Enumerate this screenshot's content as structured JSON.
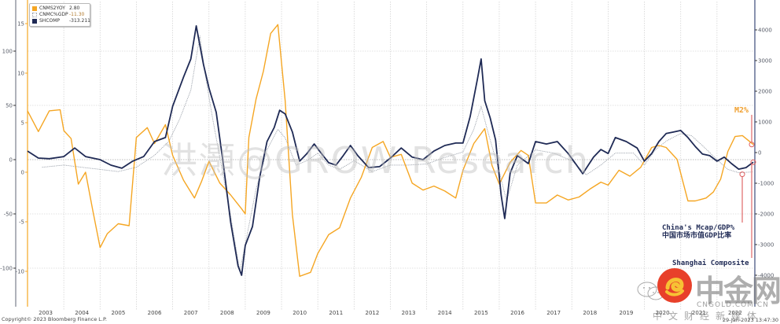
{
  "chart_data": {
    "type": "line",
    "title": "",
    "xlabel": "",
    "x_range": [
      2003,
      2023
    ],
    "x_ticks": [
      "2003",
      "2004",
      "2005",
      "2006",
      "2007",
      "2008",
      "2009",
      "2010",
      "2011",
      "2012",
      "2013",
      "2014",
      "2015",
      "2016",
      "2017",
      "2018",
      "2019",
      "2020",
      "2021",
      "2022"
    ],
    "grid": true,
    "legend_placement": "top-left",
    "axes": {
      "left_outer": {
        "series": "CNMC%GDP",
        "range": [
          -120,
          130
        ],
        "ticks": [
          "100",
          "50",
          "0",
          "-50",
          "-100"
        ],
        "tick_values": [
          100,
          50,
          0,
          -50,
          -100
        ],
        "color": "#6b7280"
      },
      "left_inner": {
        "series": "CNMS2YOY",
        "range": [
          -12,
          16
        ],
        "ticks": [
          "15",
          "10",
          "5",
          "0",
          "-5",
          "-10"
        ],
        "tick_values": [
          15,
          10,
          5,
          0,
          -5,
          -10
        ],
        "color": "#f5a623"
      },
      "right": {
        "series": "SHCOMP",
        "range": [
          -4500,
          5000
        ],
        "ticks": [
          "4000",
          "3000",
          "2000",
          "1000",
          "0",
          "-1000",
          "-2000",
          "-3000",
          "-4000"
        ],
        "tick_values": [
          4000,
          3000,
          2000,
          1000,
          0,
          -1000,
          -2000,
          -3000,
          -4000
        ],
        "color": "#1f2a55"
      }
    },
    "series": [
      {
        "name": "CNMS2YOY",
        "legend_value": "2.80",
        "axis": "left_inner",
        "color": "#f5a623",
        "style": "solid",
        "x": [
          2003.0,
          2003.3,
          2003.6,
          2003.9,
          2004.0,
          2004.2,
          2004.4,
          2004.6,
          2004.8,
          2005.0,
          2005.2,
          2005.5,
          2005.8,
          2006.0,
          2006.3,
          2006.5,
          2006.8,
          2007.0,
          2007.3,
          2007.6,
          2007.8,
          2008.0,
          2008.3,
          2008.6,
          2008.9,
          2009.0,
          2009.1,
          2009.3,
          2009.5,
          2009.7,
          2009.9,
          2010.1,
          2010.3,
          2010.5,
          2010.8,
          2011.0,
          2011.3,
          2011.6,
          2011.9,
          2012.2,
          2012.5,
          2012.8,
          2013.0,
          2013.3,
          2013.6,
          2013.9,
          2014.2,
          2014.5,
          2014.8,
          2015.0,
          2015.3,
          2015.6,
          2015.8,
          2016.0,
          2016.3,
          2016.6,
          2016.8,
          2017.0,
          2017.3,
          2017.6,
          2017.9,
          2018.2,
          2018.5,
          2018.8,
          2019.0,
          2019.3,
          2019.6,
          2019.9,
          2020.2,
          2020.4,
          2020.6,
          2020.9,
          2021.2,
          2021.4,
          2021.7,
          2021.9,
          2022.1,
          2022.3,
          2022.5,
          2022.7,
          2022.9,
          2023.0
        ],
        "values": [
          6.2,
          4.1,
          6.2,
          6.3,
          4.2,
          3.4,
          -1.2,
          0.0,
          -3.9,
          -7.6,
          -6.2,
          -5.2,
          -5.4,
          3.5,
          4.5,
          2.9,
          4.8,
          1.7,
          -0.8,
          -2.6,
          -0.9,
          1.1,
          -1.1,
          -2.3,
          -3.7,
          -4.2,
          3.5,
          7.4,
          10.2,
          14.0,
          14.9,
          7.2,
          -4.3,
          -10.5,
          -10.1,
          -8.2,
          -6.3,
          -5.6,
          -2.6,
          -0.5,
          2.5,
          3.1,
          1.5,
          1.8,
          -1.1,
          -1.8,
          -1.4,
          -1.9,
          -2.6,
          0.2,
          2.9,
          4.4,
          0.7,
          -1.2,
          1.0,
          2.2,
          1.7,
          -3.1,
          -3.1,
          -2.3,
          -2.8,
          -2.5,
          -1.7,
          -1.0,
          -1.3,
          0.2,
          -0.4,
          0.5,
          2.5,
          2.7,
          2.5,
          1.3,
          -2.9,
          -2.9,
          -2.6,
          -2.0,
          -0.7,
          2.1,
          3.6,
          3.7,
          3.1,
          2.8
        ]
      },
      {
        "name": "CNMC%GDP",
        "legend_value": "-11.30",
        "axis": "left_outer",
        "color": "#9aa0aa",
        "style": "dotted",
        "x": [
          2003.4,
          2004.0,
          2004.5,
          2005.0,
          2005.5,
          2006.0,
          2006.5,
          2006.9,
          2007.2,
          2007.5,
          2007.75,
          2007.9,
          2008.1,
          2008.3,
          2008.6,
          2008.85,
          2009.0,
          2009.3,
          2009.6,
          2009.9,
          2010.1,
          2010.4,
          2010.7,
          2011.0,
          2011.3,
          2011.6,
          2012.0,
          2012.5,
          2013.0,
          2013.5,
          2014.0,
          2014.5,
          2015.0,
          2015.3,
          2015.5,
          2015.7,
          2016.0,
          2016.2,
          2016.5,
          2017.0,
          2017.5,
          2018.0,
          2018.4,
          2018.8,
          2019.2,
          2019.7,
          2020.0,
          2020.3,
          2020.6,
          2021.0,
          2021.3,
          2021.6,
          2022.0,
          2022.3,
          2022.6,
          2023.0
        ],
        "values": [
          -7,
          -5,
          -7,
          -9,
          -11,
          -7,
          4,
          17,
          38,
          64,
          114,
          78,
          38,
          2,
          -52,
          -103,
          -78,
          -27,
          9,
          28,
          20,
          -5,
          -1,
          6,
          -5,
          -9,
          -1,
          -11,
          -5,
          -5,
          -4,
          2,
          7,
          28,
          49,
          24,
          -11,
          -38,
          -5,
          9,
          6,
          -1,
          -14,
          -5,
          6,
          6,
          -5,
          9,
          17,
          24,
          22,
          13,
          0,
          -9,
          -12,
          -11.3
        ]
      },
      {
        "name": "SHCOMP",
        "legend_value": "-313.211",
        "axis": "right",
        "color": "#1f2a55",
        "style": "solid",
        "x": [
          2003.0,
          2003.3,
          2003.6,
          2004.0,
          2004.3,
          2004.6,
          2005.0,
          2005.3,
          2005.6,
          2005.9,
          2006.2,
          2006.5,
          2006.8,
          2007.0,
          2007.3,
          2007.5,
          2007.65,
          2007.85,
          2008.0,
          2008.2,
          2008.4,
          2008.6,
          2008.8,
          2008.9,
          2009.0,
          2009.2,
          2009.4,
          2009.6,
          2009.8,
          2009.95,
          2010.1,
          2010.3,
          2010.5,
          2010.7,
          2010.9,
          2011.1,
          2011.3,
          2011.5,
          2011.7,
          2011.9,
          2012.1,
          2012.4,
          2012.7,
          2013.0,
          2013.3,
          2013.6,
          2013.9,
          2014.2,
          2014.5,
          2014.8,
          2015.0,
          2015.2,
          2015.4,
          2015.5,
          2015.6,
          2015.75,
          2015.9,
          2016.05,
          2016.15,
          2016.3,
          2016.5,
          2016.8,
          2017.0,
          2017.3,
          2017.6,
          2017.9,
          2018.1,
          2018.3,
          2018.6,
          2018.8,
          2019.0,
          2019.2,
          2019.5,
          2019.8,
          2020.0,
          2020.2,
          2020.4,
          2020.6,
          2020.8,
          2021.0,
          2021.2,
          2021.4,
          2021.6,
          2021.8,
          2022.0,
          2022.2,
          2022.4,
          2022.6,
          2022.8,
          2023.0
        ],
        "values": [
          50,
          -180,
          -200,
          -130,
          150,
          -130,
          -230,
          -410,
          -510,
          -280,
          -130,
          360,
          490,
          1510,
          2460,
          3050,
          4130,
          2870,
          2100,
          1310,
          -410,
          -2280,
          -3690,
          -4000,
          -3030,
          -2410,
          -790,
          360,
          820,
          1380,
          1260,
          670,
          -280,
          -30,
          280,
          -30,
          -330,
          -410,
          -100,
          230,
          -100,
          -490,
          -460,
          -180,
          150,
          -150,
          -230,
          50,
          230,
          310,
          310,
          1180,
          2410,
          3050,
          1690,
          1130,
          410,
          -1380,
          -2150,
          -670,
          -100,
          -360,
          360,
          280,
          360,
          -30,
          -360,
          -690,
          -150,
          100,
          -30,
          490,
          360,
          150,
          -280,
          -30,
          360,
          620,
          670,
          720,
          490,
          200,
          -50,
          -100,
          -280,
          -150,
          -360,
          -540,
          -490,
          -313.211
        ]
      }
    ],
    "annotations": {
      "m2": "M2%",
      "mcap_en": "China's Mcap/GDP%",
      "mcap_cn": "中国市场市值GDP比率",
      "shcomp": "Shanghai Composite"
    }
  },
  "footer": {
    "copyright": "Copyright© 2023 Bloomberg Finance L.P.",
    "timestamp": "29-Jan-2023 13:47:30"
  },
  "watermark": {
    "text": "洪灝@GROW Research",
    "logo_cn": "中金网",
    "logo_domain": "CNGOLD.COM.CN",
    "logo_sub": "中文财经新媒体"
  }
}
